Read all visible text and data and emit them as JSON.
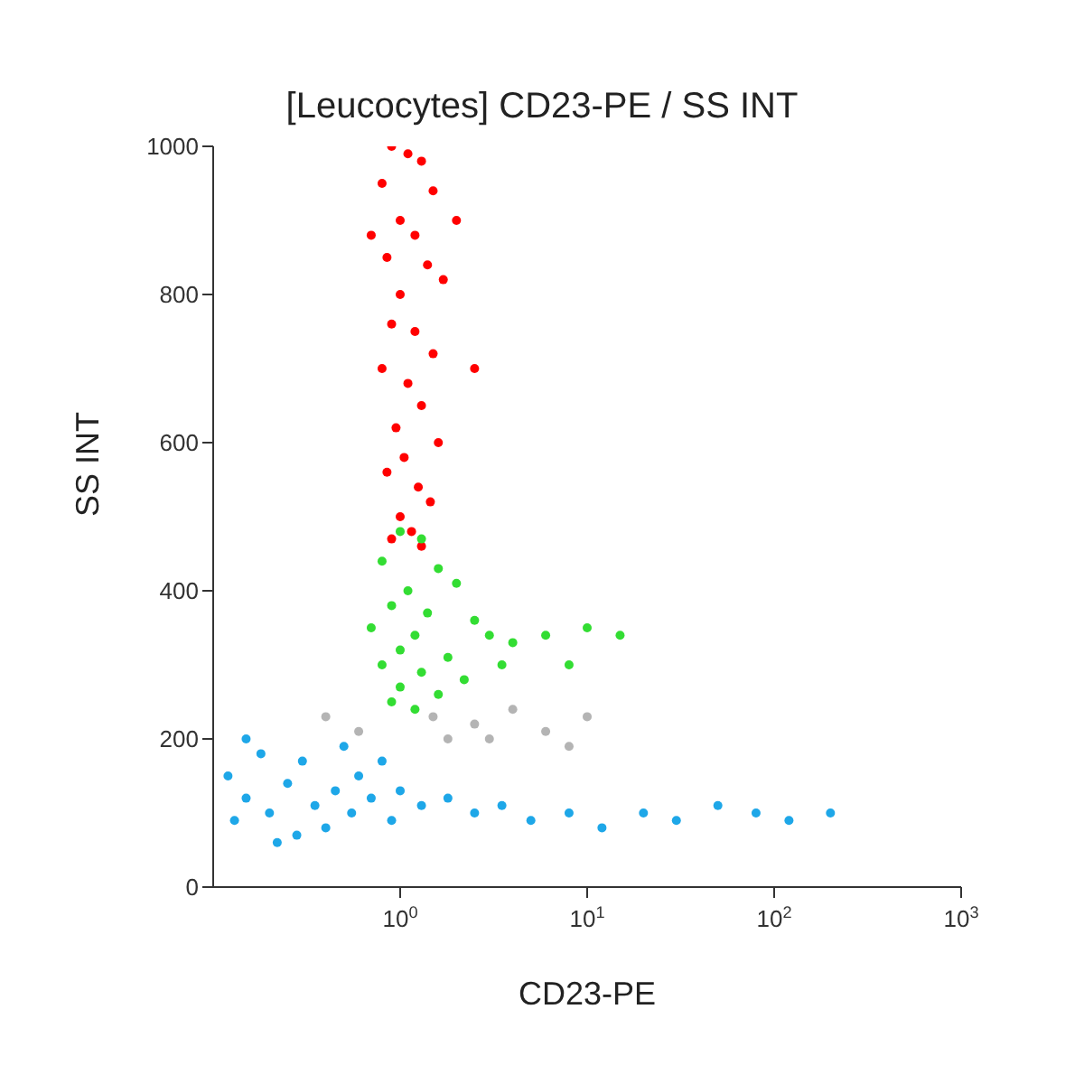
{
  "chart_data": {
    "type": "scatter",
    "title": "[Leucocytes] CD23-PE / SS INT",
    "xlabel": "CD23-PE",
    "ylabel": "SS INT",
    "log": "x",
    "xlim": [
      0.1,
      1000
    ],
    "xticks": [
      {
        "value": 1,
        "label": "10$^{0}$"
      },
      {
        "value": 10,
        "label": "10$^{1}$"
      },
      {
        "value": 100,
        "label": "10$^{2}$"
      },
      {
        "value": 1000,
        "label": "10$^{3}$"
      }
    ],
    "ylim": [
      0,
      1000
    ],
    "yticks": [
      0,
      200,
      400,
      600,
      800,
      1000
    ],
    "grid": false,
    "marker": "circle",
    "series": [
      {
        "color": "#ff0000",
        "x": [
          0.9,
          1.1,
          1.3,
          0.8,
          1.5,
          1.0,
          1.2,
          0.85,
          1.4,
          1.7,
          1.0,
          0.9,
          1.2,
          1.5,
          0.8,
          1.1,
          1.3,
          0.95,
          1.6,
          1.05,
          0.85,
          1.25,
          1.45,
          1.0,
          1.15,
          0.9,
          1.3,
          2.0,
          0.7,
          2.5
        ],
        "values": [
          1000,
          990,
          980,
          950,
          940,
          900,
          880,
          850,
          840,
          820,
          800,
          760,
          750,
          720,
          700,
          680,
          650,
          620,
          600,
          580,
          560,
          540,
          520,
          500,
          480,
          470,
          460,
          900,
          880,
          700
        ]
      },
      {
        "color": "#33dd33",
        "x": [
          1.0,
          1.3,
          0.8,
          1.6,
          1.1,
          2.0,
          0.9,
          1.4,
          2.5,
          0.7,
          1.2,
          3.0,
          1.0,
          1.8,
          4.0,
          0.8,
          1.3,
          2.2,
          6.0,
          1.0,
          1.6,
          10,
          15,
          3.5,
          0.9,
          1.2,
          8
        ],
        "values": [
          480,
          470,
          440,
          430,
          400,
          410,
          380,
          370,
          360,
          350,
          340,
          340,
          320,
          310,
          330,
          300,
          290,
          280,
          340,
          270,
          260,
          350,
          340,
          300,
          250,
          240,
          300
        ]
      },
      {
        "color": "#b4b4b4",
        "x": [
          1.5,
          2.5,
          4,
          6,
          3,
          10,
          1.8,
          8,
          0.6,
          0.4
        ],
        "values": [
          230,
          220,
          240,
          210,
          200,
          230,
          200,
          190,
          210,
          230
        ]
      },
      {
        "color": "#1ea7e8",
        "x": [
          0.12,
          0.15,
          0.2,
          0.25,
          0.3,
          0.35,
          0.4,
          0.45,
          0.5,
          0.55,
          0.6,
          0.7,
          0.8,
          0.9,
          0.13,
          0.18,
          0.28,
          1.0,
          1.3,
          1.8,
          2.5,
          3.5,
          5,
          8,
          12,
          20,
          30,
          50,
          80,
          120,
          200,
          0.22,
          0.15
        ],
        "values": [
          150,
          120,
          100,
          140,
          170,
          110,
          80,
          130,
          190,
          100,
          150,
          120,
          170,
          90,
          90,
          180,
          70,
          130,
          110,
          120,
          100,
          110,
          90,
          100,
          80,
          100,
          90,
          110,
          100,
          90,
          100,
          60,
          200
        ]
      }
    ]
  }
}
